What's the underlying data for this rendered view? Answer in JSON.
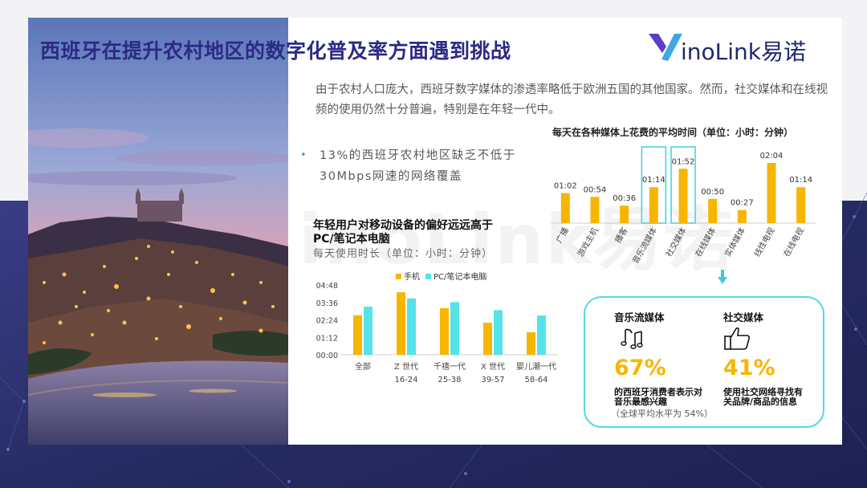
{
  "title": "西班牙在提升农村地区的数字化普及率方面遇到挑战",
  "logo": {
    "text": "inoLink易诺"
  },
  "intro_text": "由于农村人口庞大，西班牙数字媒体的渗透率略低于欧洲五国的其他国家。然而，社交媒体和在线视频的使用仍然十分普遍，特别是在年轻一代中。",
  "bullet_text": "13%的西班牙农村地区缺乏不低于30Mbps网速的网络覆盖",
  "watermark": "inoLink易诺",
  "left_chart_heading": "年轻用户对移动设备的偏好远远高于PC/笔记本电脑",
  "left_chart_subheading": "每天使用时长（单位：小时：分钟）",
  "right_chart_heading": "每天在各种媒体上花费的平均时间（单位：小时：分钟）",
  "colors": {
    "yellow": "#f6b600",
    "cyan": "#55e3ea",
    "title": "#2b2a84",
    "highlight_border": "#3fd0dc"
  },
  "chart_data": [
    {
      "type": "bar",
      "title": "每天使用时长（单位：小时：分钟）",
      "categories": [
        "全部",
        "Z 世代\n16-24",
        "千禧一代\n25-38",
        "X 世代\n39-57",
        "婴儿潮一代\n58-64"
      ],
      "series": [
        {
          "name": "手机",
          "values": [
            163,
            258,
            192,
            132,
            93
          ]
        },
        {
          "name": "PC/笔记本电脑",
          "values": [
            198,
            232,
            217,
            184,
            162
          ]
        }
      ],
      "value_unit": "minutes",
      "ylim": [
        0,
        288
      ],
      "yticks": [
        0,
        72,
        144,
        216,
        288
      ],
      "ytick_labels": [
        "00:00",
        "01:12",
        "02:24",
        "03:36",
        "04:48"
      ],
      "legend": "top-left"
    },
    {
      "type": "bar",
      "title": "每天在各种媒体上花费的平均时间（单位：小时：分钟）",
      "categories": [
        "广播",
        "游戏主机",
        "播客",
        "音乐流媒体",
        "社交媒体",
        "在线媒体",
        "实体媒体",
        "线性电视",
        "在线电视"
      ],
      "values": [
        62,
        54,
        36,
        74,
        112,
        50,
        27,
        124,
        74
      ],
      "value_unit": "minutes",
      "data_labels": [
        "01:02",
        "00:54",
        "00:36",
        "01:14",
        "01:52",
        "00:50",
        "00:27",
        "02:04",
        "01:14"
      ],
      "highlighted": [
        "音乐流媒体",
        "社交媒体"
      ]
    }
  ],
  "infobox": {
    "music": {
      "heading": "音乐流媒体",
      "icon": "music-notes-icon",
      "percent": "67%",
      "desc_line1": "的西班牙消费者表示对",
      "desc_line2": "音乐最感兴趣",
      "note": "（全球平均水平为 54%）"
    },
    "social": {
      "heading": "社交媒体",
      "icon": "thumbs-up-icon",
      "percent": "41%",
      "desc_line1": "使用社交网络寻找有",
      "desc_line2": "关品牌/商品的信息"
    }
  }
}
